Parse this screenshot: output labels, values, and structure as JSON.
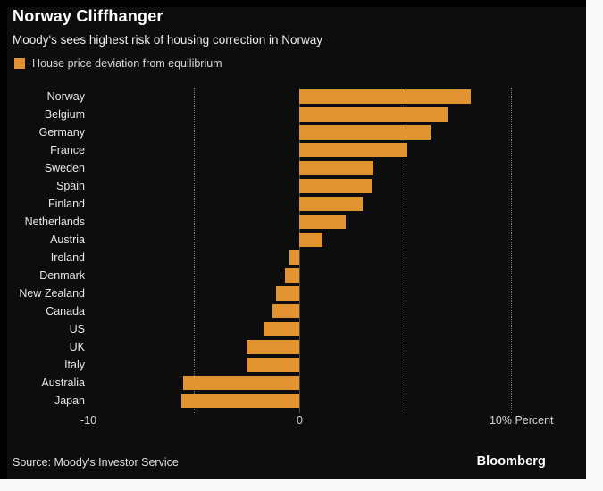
{
  "header": {
    "title": "Norway Cliffhanger",
    "subtitle": "Moody's sees highest risk of housing correction in Norway"
  },
  "legend": {
    "label": "House price deviation from equilibrium",
    "swatch_color": "#E29430"
  },
  "chart_data": {
    "type": "bar",
    "orientation": "horizontal",
    "title": "Norway Cliffhanger",
    "subtitle": "Moody's sees highest risk of housing correction in Norway",
    "legend_entries": [
      "House price deviation from equilibrium"
    ],
    "legend_position": "top-left",
    "categories": [
      "Norway",
      "Belgium",
      "Germany",
      "France",
      "Sweden",
      "Spain",
      "Finland",
      "Netherlands",
      "Austria",
      "Ireland",
      "Denmark",
      "New Zealand",
      "Canada",
      "US",
      "UK",
      "Italy",
      "Australia",
      "Japan"
    ],
    "values": [
      8.1,
      7.0,
      6.2,
      5.1,
      3.5,
      3.4,
      3.0,
      2.2,
      1.1,
      -0.5,
      -0.7,
      -1.1,
      -1.3,
      -1.7,
      -2.5,
      -2.5,
      -5.5,
      -5.6
    ],
    "unit": "percent",
    "xlim": [
      -10,
      13.3
    ],
    "xticks": [
      {
        "value": -10,
        "label": "-10"
      },
      {
        "value": 0,
        "label": "0"
      },
      {
        "value": 10,
        "label": "10% Percent"
      }
    ],
    "gridlines": [
      -5,
      5,
      10
    ],
    "grid_style": "dotted-vertical",
    "bar_color": "#E29430",
    "background_color": "#000000"
  },
  "footer": {
    "source": "Source: Moody's Investor Service",
    "brand": "Bloomberg"
  },
  "colors": {
    "page_margin": "#fafafa",
    "chart_background": "#000000",
    "panel": "#0d0d0d",
    "bar": "#E29430",
    "title_text": "#ffffff",
    "muted_text": "#d9d9d9",
    "gridline": "#7d7d7d"
  }
}
